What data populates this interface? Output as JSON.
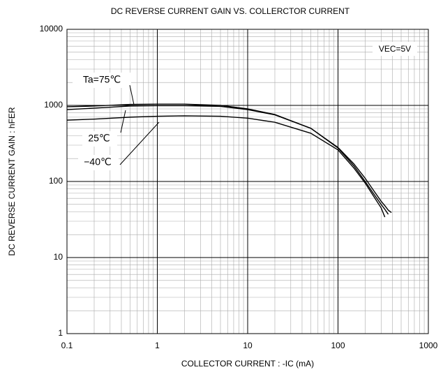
{
  "chart_data": {
    "type": "line",
    "title": "DC REVERSE CURRENT GAIN VS. COLLERCTOR CURRENT",
    "x_label": "COLLECTOR CURRENT : -IC (mA)",
    "y_label": "DC REVERSE CURRENT GAIN : hFER",
    "annotation": "VEC=5V",
    "x": [
      0.1,
      0.2,
      0.5,
      1,
      2,
      5,
      10,
      20,
      50,
      100,
      150,
      200,
      250,
      300,
      330,
      360,
      390
    ],
    "series": [
      {
        "name": "Ta=75℃",
        "color": "#000000",
        "values": [
          960,
          980,
          1030,
          1040,
          1040,
          1000,
          900,
          760,
          500,
          280,
          170,
          110,
          75,
          55,
          48,
          42,
          39
        ]
      },
      {
        "name": "25℃",
        "color": "#000000",
        "values": [
          880,
          920,
          980,
          990,
          990,
          970,
          880,
          750,
          500,
          275,
          160,
          100,
          68,
          50,
          43,
          37,
          null
        ]
      },
      {
        "name": "−40℃",
        "color": "#000000",
        "values": [
          640,
          660,
          700,
          720,
          730,
          720,
          680,
          600,
          430,
          260,
          150,
          95,
          63,
          45,
          34,
          null,
          null
        ]
      }
    ],
    "xscale": "log",
    "yscale": "log",
    "xlim": [
      0.1,
      1000
    ],
    "ylim": [
      1,
      10000
    ],
    "xticks": [
      0.1,
      1,
      10,
      100,
      1000
    ],
    "yticks": [
      1,
      10,
      100,
      1000,
      10000
    ],
    "grid": true
  }
}
